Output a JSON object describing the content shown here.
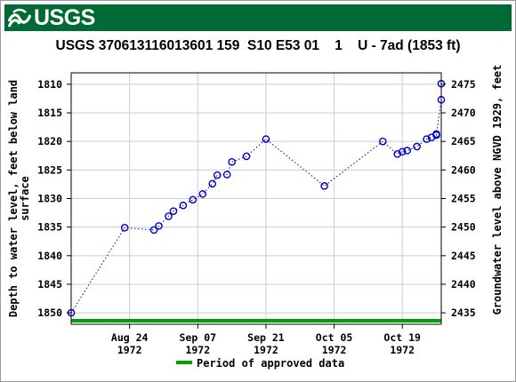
{
  "banner": {
    "logo_text": "USGS",
    "logo_icon": "usgs-wave-icon",
    "color": "#006a35"
  },
  "chart_data": {
    "type": "scatter",
    "title": "USGS 370613116013601 159  S10 E53 01    1    U - 7ad (1853 ft)",
    "ylabel_left": [
      "Depth to water level, feet below land",
      "surface"
    ],
    "ylabel_right": "Groundwater level above NGVD 1929, feet",
    "left_axis": {
      "range": [
        1852,
        1808
      ],
      "inverted": true,
      "ticks": [
        1810,
        1815,
        1820,
        1825,
        1830,
        1835,
        1840,
        1845,
        1850
      ]
    },
    "right_axis": {
      "range": [
        2433,
        2477
      ],
      "ticks": [
        2435,
        2440,
        2445,
        2450,
        2455,
        2460,
        2465,
        2470,
        2475
      ]
    },
    "x_axis": {
      "range": [
        "1972-08-12",
        "1972-10-27"
      ],
      "ticks": [
        {
          "date": "1972-08-24",
          "label": [
            "Aug 24",
            "1972"
          ]
        },
        {
          "date": "1972-09-07",
          "label": [
            "Sep 07",
            "1972"
          ]
        },
        {
          "date": "1972-09-21",
          "label": [
            "Sep 21",
            "1972"
          ]
        },
        {
          "date": "1972-10-05",
          "label": [
            "Oct 05",
            "1972"
          ]
        },
        {
          "date": "1972-10-19",
          "label": [
            "Oct 19",
            "1972"
          ]
        }
      ]
    },
    "grid": true,
    "series": [
      {
        "points": [
          {
            "date": "1972-08-12",
            "depth": 1850.0
          },
          {
            "date": "1972-08-23",
            "depth": 1835.1
          },
          {
            "date": "1972-08-29",
            "depth": 1835.5
          },
          {
            "date": "1972-08-30",
            "depth": 1834.8
          },
          {
            "date": "1972-09-01",
            "depth": 1833.1
          },
          {
            "date": "1972-09-02",
            "depth": 1832.2
          },
          {
            "date": "1972-09-04",
            "depth": 1831.2
          },
          {
            "date": "1972-09-06",
            "depth": 1830.2
          },
          {
            "date": "1972-09-08",
            "depth": 1829.2
          },
          {
            "date": "1972-09-10",
            "depth": 1827.4
          },
          {
            "date": "1972-09-11",
            "depth": 1825.9
          },
          {
            "date": "1972-09-13",
            "depth": 1825.8
          },
          {
            "date": "1972-09-14",
            "depth": 1823.6
          },
          {
            "date": "1972-09-17",
            "depth": 1822.6
          },
          {
            "date": "1972-09-21",
            "depth": 1819.6
          },
          {
            "date": "1972-10-03",
            "depth": 1827.8
          },
          {
            "date": "1972-10-15",
            "depth": 1820.0
          },
          {
            "date": "1972-10-18",
            "depth": 1822.2
          },
          {
            "date": "1972-10-19",
            "depth": 1821.8
          },
          {
            "date": "1972-10-20",
            "depth": 1821.6
          },
          {
            "date": "1972-10-22",
            "depth": 1820.9
          },
          {
            "date": "1972-10-24",
            "depth": 1819.6
          },
          {
            "date": "1972-10-25",
            "depth": 1819.3
          },
          {
            "date": "1972-10-26",
            "depth": 1818.9
          },
          {
            "date": "1972-10-26",
            "depth": 1818.7
          },
          {
            "date": "1972-10-27",
            "depth": 1812.7
          },
          {
            "date": "1972-10-27",
            "depth": 1809.9
          }
        ],
        "color": "#0000cc"
      }
    ],
    "approved_period": {
      "start": "1972-08-12",
      "end": "1972-10-27",
      "color": "#00a000"
    },
    "legend": {
      "label": "Period of approved data",
      "placement": "bottom-center"
    }
  }
}
